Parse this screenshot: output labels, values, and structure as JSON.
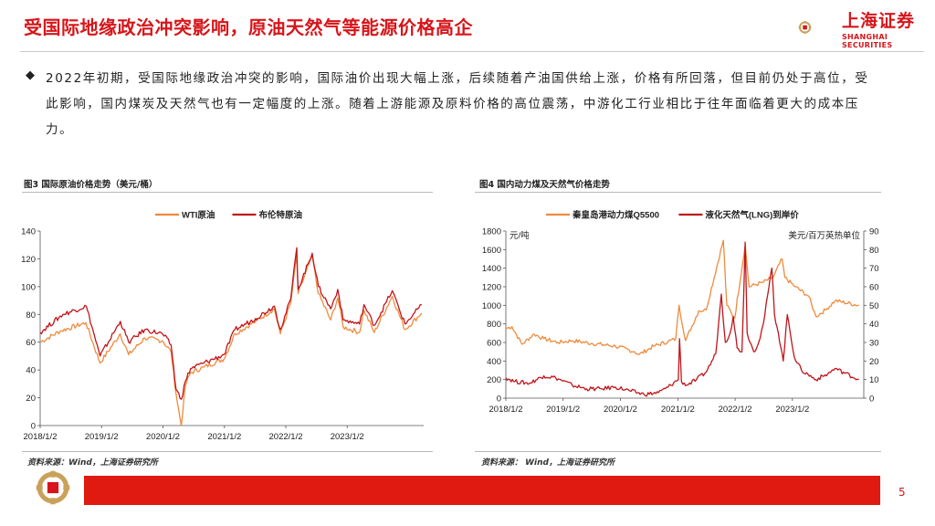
{
  "header": {
    "title": "受国际地缘政治冲突影响，原油天然气等能源价格高企",
    "brand_zh": "上海证券",
    "brand_en": "SHANGHAI SECURITIES",
    "brand_color": "#d7151a"
  },
  "body": {
    "bullet": "◆",
    "paragraph": "2022年初期，受国际地缘政治冲突的影响，国际油价出现大幅上涨，后续随着产油国供给上涨，价格有所回落，但目前仍处于高位，受此影响，国内煤炭及天然气也有一定幅度的上涨。随着上游能源及原料价格的高位震荡，中游化工行业相比于往年面临着更大的成本压力。"
  },
  "figures": {
    "fig3_caption": "图3  国际原油价格走势（美元/桶）",
    "fig4_caption": "图4  国内动力煤及天然气价格走势",
    "source_left": "资料来源：Wind，上海证券研究所",
    "source_right": "资料来源： Wind，上海证券研究所"
  },
  "footer": {
    "page": "5"
  },
  "chart_data": [
    {
      "type": "line",
      "x_ticks": [
        "2018/1/2",
        "2019/1/2",
        "2020/1/2",
        "2021/1/2",
        "2022/1/2",
        "2023/1/2"
      ],
      "ylim": [
        0,
        140
      ],
      "y_ticks": [
        "0",
        "20",
        "40",
        "60",
        "80",
        "100",
        "120",
        "140"
      ],
      "legend": "top-center",
      "series": [
        {
          "name": "WTI原油",
          "color": "#f08a3c",
          "points": [
            [
              "2018/1/2",
              60
            ],
            [
              "2018/5/1",
              68
            ],
            [
              "2018/10/1",
              74
            ],
            [
              "2018/12/24",
              45
            ],
            [
              "2019/4/23",
              66
            ],
            [
              "2019/6/12",
              51
            ],
            [
              "2019/9/16",
              63
            ],
            [
              "2019/12/31",
              61
            ],
            [
              "2020/2/20",
              53
            ],
            [
              "2020/3/20",
              23
            ],
            [
              "2020/4/20",
              0
            ],
            [
              "2020/5/15",
              29
            ],
            [
              "2020/6/15",
              38
            ],
            [
              "2020/9/1",
              42
            ],
            [
              "2020/12/31",
              48
            ],
            [
              "2021/3/5",
              66
            ],
            [
              "2021/7/6",
              75
            ],
            [
              "2021/10/26",
              84
            ],
            [
              "2021/12/1",
              66
            ],
            [
              "2022/1/31",
              88
            ],
            [
              "2022/3/8",
              123
            ],
            [
              "2022/3/16",
              95
            ],
            [
              "2022/6/8",
              122
            ],
            [
              "2022/7/15",
              95
            ],
            [
              "2022/9/26",
              76
            ],
            [
              "2022/11/7",
              92
            ],
            [
              "2022/12/9",
              71
            ],
            [
              "2023/3/17",
              67
            ],
            [
              "2023/4/12",
              83
            ],
            [
              "2023/6/12",
              67
            ],
            [
              "2023/9/27",
              93
            ],
            [
              "2023/12/12",
              69
            ],
            [
              "2024/3/20",
              81
            ]
          ]
        },
        {
          "name": "布伦特原油",
          "color": "#c0151a",
          "points": [
            [
              "2018/1/2",
              67
            ],
            [
              "2018/5/17",
              80
            ],
            [
              "2018/10/3",
              86
            ],
            [
              "2018/12/24",
              50
            ],
            [
              "2019/4/24",
              75
            ],
            [
              "2019/6/12",
              60
            ],
            [
              "2019/9/16",
              69
            ],
            [
              "2019/12/31",
              66
            ],
            [
              "2020/2/20",
              58
            ],
            [
              "2020/3/20",
              26
            ],
            [
              "2020/4/21",
              19
            ],
            [
              "2020/5/15",
              32
            ],
            [
              "2020/6/15",
              41
            ],
            [
              "2020/9/1",
              45
            ],
            [
              "2020/12/31",
              51
            ],
            [
              "2021/3/5",
              69
            ],
            [
              "2021/7/6",
              77
            ],
            [
              "2021/10/26",
              86
            ],
            [
              "2021/12/1",
              69
            ],
            [
              "2022/1/31",
              91
            ],
            [
              "2022/3/8",
              128
            ],
            [
              "2022/3/16",
              98
            ],
            [
              "2022/6/8",
              124
            ],
            [
              "2022/7/15",
              100
            ],
            [
              "2022/9/26",
              84
            ],
            [
              "2022/11/7",
              98
            ],
            [
              "2022/12/9",
              76
            ],
            [
              "2023/3/17",
              73
            ],
            [
              "2023/4/12",
              87
            ],
            [
              "2023/6/12",
              72
            ],
            [
              "2023/9/27",
              97
            ],
            [
              "2023/12/12",
              73
            ],
            [
              "2024/3/20",
              87
            ]
          ]
        }
      ]
    },
    {
      "type": "line",
      "x_ticks": [
        "2018/1/2",
        "2019/1/2",
        "2020/1/2",
        "2021/1/2",
        "2022/1/2",
        "2023/1/2"
      ],
      "ylim_left": [
        0,
        1800
      ],
      "y_ticks_left": [
        "0",
        "200",
        "400",
        "600",
        "800",
        "1000",
        "1200",
        "1400",
        "1600",
        "1800"
      ],
      "ylim_right": [
        0,
        90
      ],
      "y_ticks_right": [
        "0",
        "10",
        "20",
        "30",
        "40",
        "50",
        "60",
        "70",
        "80",
        "90"
      ],
      "ylabel_left": "元/吨",
      "ylabel_right": "美元/百万英热单位",
      "legend": "top-center",
      "series": [
        {
          "name": "秦皇岛港动力煤Q5500",
          "axis": "left",
          "color": "#f08a3c",
          "points": [
            [
              "2018/1/2",
              750
            ],
            [
              "2018/2/10",
              770
            ],
            [
              "2018/4/15",
              580
            ],
            [
              "2018/7/1",
              690
            ],
            [
              "2018/9/1",
              640
            ],
            [
              "2018/12/1",
              600
            ],
            [
              "2019/3/1",
              620
            ],
            [
              "2019/7/1",
              590
            ],
            [
              "2019/12/1",
              560
            ],
            [
              "2020/4/1",
              500
            ],
            [
              "2020/5/1",
              470
            ],
            [
              "2020/8/1",
              560
            ],
            [
              "2020/11/1",
              610
            ],
            [
              "2020/12/20",
              640
            ],
            [
              "2021/1/10",
              1000
            ],
            [
              "2021/2/20",
              620
            ],
            [
              "2021/5/15",
              940
            ],
            [
              "2021/7/1",
              950
            ],
            [
              "2021/10/19",
              1700
            ],
            [
              "2021/11/10",
              1000
            ],
            [
              "2021/12/30",
              860
            ],
            [
              "2022/3/7",
              1650
            ],
            [
              "2022/4/1",
              1200
            ],
            [
              "2022/7/1",
              1250
            ],
            [
              "2022/9/1",
              1300
            ],
            [
              "2022/10/28",
              1500
            ],
            [
              "2022/11/15",
              1300
            ],
            [
              "2023/1/20",
              1200
            ],
            [
              "2023/4/15",
              1100
            ],
            [
              "2023/6/1",
              880
            ],
            [
              "2023/8/1",
              950
            ],
            [
              "2023/10/1",
              1050
            ],
            [
              "2024/3/1",
              1000
            ]
          ]
        },
        {
          "name": "液化天然气(LNG)到岸价",
          "axis": "right",
          "color": "#c0151a",
          "points": [
            [
              "2018/1/2",
              11
            ],
            [
              "2018/3/1",
              9
            ],
            [
              "2018/6/1",
              8
            ],
            [
              "2018/9/1",
              12
            ],
            [
              "2018/11/15",
              11
            ],
            [
              "2019/3/1",
              7
            ],
            [
              "2019/6/1",
              5
            ],
            [
              "2019/9/1",
              5
            ],
            [
              "2019/12/1",
              6
            ],
            [
              "2020/3/1",
              4
            ],
            [
              "2020/6/1",
              2
            ],
            [
              "2020/9/1",
              3
            ],
            [
              "2020/11/1",
              6
            ],
            [
              "2021/1/5",
              10
            ],
            [
              "2021/1/13",
              32
            ],
            [
              "2021/1/25",
              9
            ],
            [
              "2021/3/1",
              7
            ],
            [
              "2021/5/1",
              10
            ],
            [
              "2021/7/1",
              14
            ],
            [
              "2021/9/1",
              24
            ],
            [
              "2021/10/6",
              56
            ],
            [
              "2021/11/1",
              30
            ],
            [
              "2021/12/1",
              35
            ],
            [
              "2021/12/21",
              44
            ],
            [
              "2022/1/15",
              27
            ],
            [
              "2022/2/15",
              25
            ],
            [
              "2022/3/7",
              84
            ],
            [
              "2022/3/20",
              35
            ],
            [
              "2022/5/1",
              25
            ],
            [
              "2022/6/1",
              30
            ],
            [
              "2022/7/1",
              40
            ],
            [
              "2022/8/24",
              70
            ],
            [
              "2022/9/10",
              45
            ],
            [
              "2022/10/5",
              35
            ],
            [
              "2022/11/5",
              20
            ],
            [
              "2022/12/1",
              45
            ],
            [
              "2023/1/15",
              22
            ],
            [
              "2023/3/1",
              15
            ],
            [
              "2023/6/1",
              10
            ],
            [
              "2023/8/15",
              13
            ],
            [
              "2023/10/1",
              16
            ],
            [
              "2024/3/1",
              10
            ]
          ]
        }
      ]
    }
  ]
}
